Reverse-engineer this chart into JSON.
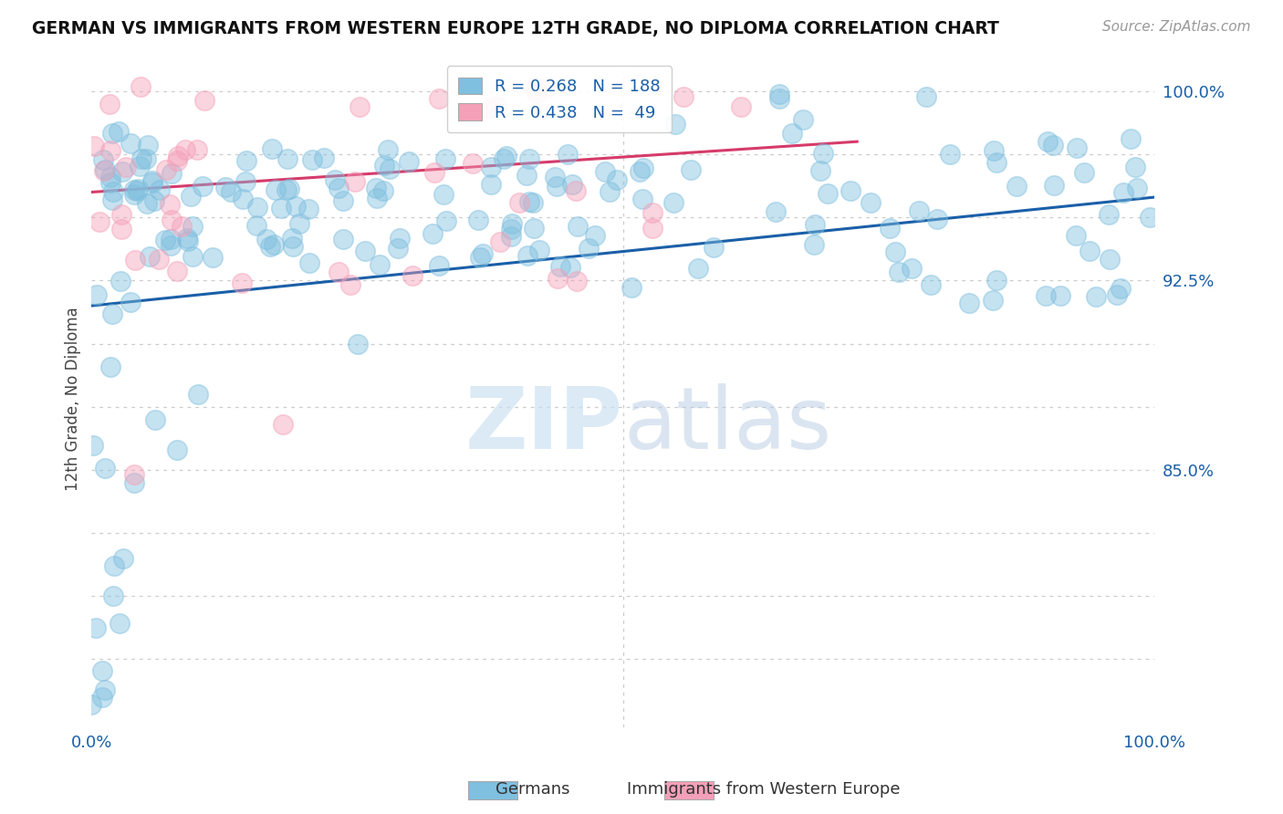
{
  "title": "GERMAN VS IMMIGRANTS FROM WESTERN EUROPE 12TH GRADE, NO DIPLOMA CORRELATION CHART",
  "source": "Source: ZipAtlas.com",
  "xlabel": "",
  "ylabel": "12th Grade, No Diploma",
  "xmin": 0.0,
  "xmax": 1.0,
  "ymin": 0.748,
  "ymax": 1.008,
  "ytick_vals": [
    0.775,
    0.8,
    0.825,
    0.85,
    0.875,
    0.9,
    0.925,
    0.95,
    0.975,
    1.0
  ],
  "ytick_labels": [
    "",
    "",
    "",
    "85.0%",
    "",
    "",
    "92.5%",
    "",
    "",
    "100.0%"
  ],
  "xtick_labels": [
    "0.0%",
    "100.0%"
  ],
  "blue_color": "#7fbfdf",
  "pink_color": "#f4a0b8",
  "blue_line_color": "#1a5fa8",
  "pink_line_color": "#d63b6a",
  "legend_blue_label": "R = 0.268   N = 188",
  "legend_pink_label": "R = 0.438   N =  49",
  "watermark_zip": "ZIP",
  "watermark_atlas": "atlas",
  "blue_R": 0.268,
  "blue_N": 188,
  "pink_R": 0.438,
  "pink_N": 49,
  "background_color": "#ffffff",
  "plot_bg_color": "#ffffff",
  "grid_color": "#cccccc",
  "blue_line_y0": 0.915,
  "blue_line_y1": 0.958,
  "pink_line_y0": 0.96,
  "pink_line_y1": 0.98
}
